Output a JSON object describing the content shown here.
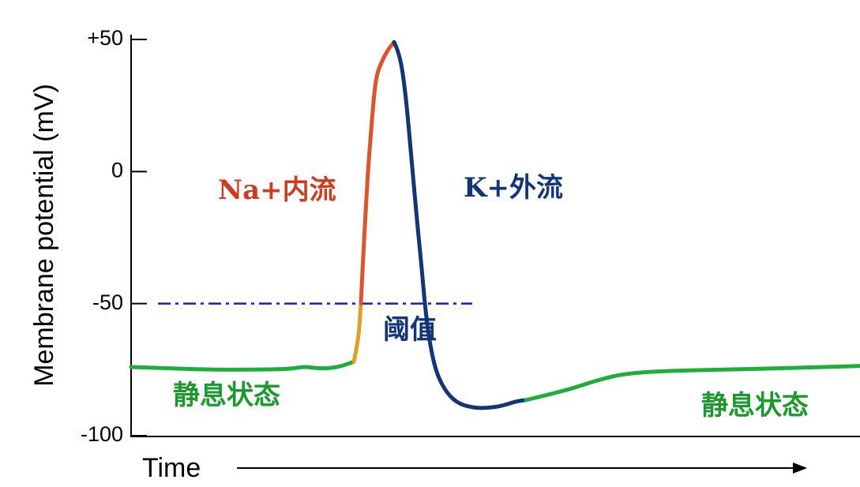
{
  "chart_data": {
    "type": "line",
    "ylabel": "Membrane potential (mV)",
    "xlabel": "Time",
    "ylim": [
      -100,
      50
    ],
    "yticks": [
      {
        "value": 50,
        "label": "+50"
      },
      {
        "value": 0,
        "label": "0"
      },
      {
        "value": -50,
        "label": "-50"
      },
      {
        "value": -100,
        "label": "-100"
      }
    ],
    "threshold": -50,
    "x_range": [
      0,
      100
    ],
    "segments": [
      {
        "phase": "resting",
        "color": "#1fae3c",
        "x": [
          0,
          10,
          20,
          30,
          40,
          44,
          47,
          50,
          53,
          56.4
        ],
        "y": [
          -74,
          -74.5,
          -75,
          -75,
          -74.8,
          -73.8,
          -74.5,
          -74.5,
          -73.8,
          -72
        ]
      },
      {
        "phase": "threshold-rise",
        "color": "#e0a020",
        "x": [
          56.4,
          57.6,
          58.2
        ],
        "y": [
          -72,
          -64,
          -50
        ]
      },
      {
        "phase": "depolarization",
        "color": "#e0522a",
        "x": [
          58.2,
          59.5,
          61,
          62,
          63.6,
          65,
          66.6
        ],
        "y": [
          -50,
          -10,
          20,
          36,
          42,
          46,
          49
        ]
      },
      {
        "phase": "repolarization",
        "color": "#12357a",
        "x": [
          66.6,
          68,
          69.5,
          71,
          72.5,
          73.5,
          74.7,
          76,
          77.5,
          80,
          83,
          87,
          90,
          93,
          95.5,
          97.5,
          100
        ],
        "y": [
          49,
          45,
          30,
          5,
          -20,
          -35,
          -55,
          -68,
          -77,
          -84,
          -88,
          -89.5,
          -89.5,
          -89,
          -88,
          -87,
          -86.5
        ]
      },
      {
        "phase": "recovery",
        "color": "#1fae3c",
        "x": [
          100,
          110,
          118,
          125,
          135,
          150,
          170,
          186.5
        ],
        "y": [
          -86.5,
          -83,
          -79,
          -76.5,
          -75.5,
          -75,
          -74.3,
          -73.5
        ]
      }
    ],
    "annotations": [
      {
        "text": "Na+内流",
        "color": "#d03a1e"
      },
      {
        "text": "K+外流",
        "color": "#12357a"
      },
      {
        "text": "阈值",
        "color": "#12357a"
      },
      {
        "text": "静息状态",
        "color": "#1a9a2c"
      },
      {
        "text": "静息状态",
        "color": "#1a9a2c"
      }
    ],
    "colors": {
      "resting": "#1fae3c",
      "threshold_line": "#1a1acc",
      "axis": "#000000"
    }
  }
}
